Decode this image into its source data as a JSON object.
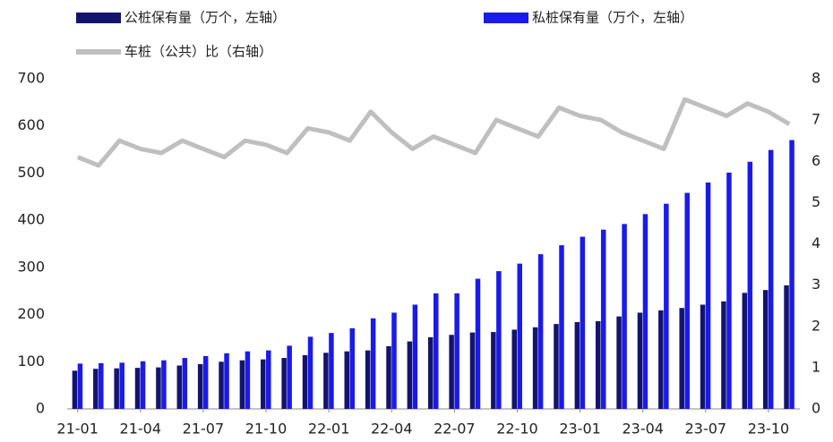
{
  "chart_data": {
    "type": "bar-line",
    "categories": [
      "21-01",
      null,
      null,
      "21-04",
      null,
      null,
      "21-07",
      null,
      null,
      "21-10",
      null,
      null,
      "22-01",
      null,
      null,
      "22-04",
      null,
      null,
      "22-07",
      null,
      null,
      "22-10",
      null,
      null,
      "23-01",
      null,
      null,
      "23-04",
      null,
      null,
      "23-07",
      null,
      null,
      "23-10",
      null
    ],
    "series": [
      {
        "name": "公桩保有量（万个，左轴）",
        "type": "bar",
        "color": "#14146e",
        "values": [
          81,
          85,
          86,
          87,
          88,
          92,
          95,
          100,
          103,
          105,
          108,
          114,
          119,
          122,
          124,
          133,
          143,
          152,
          157,
          162,
          163,
          168,
          173,
          180,
          184,
          186,
          196,
          204,
          209,
          214,
          221,
          228,
          246,
          252,
          262
        ]
      },
      {
        "name": "私桩保有量（万个，左轴）",
        "type": "bar",
        "color": "#1a1aeb",
        "values": [
          96,
          97,
          98,
          101,
          103,
          108,
          112,
          118,
          122,
          124,
          134,
          153,
          161,
          171,
          192,
          204,
          221,
          245,
          245,
          276,
          292,
          308,
          328,
          347,
          365,
          380,
          392,
          413,
          435,
          458,
          480,
          501,
          524,
          549,
          570
        ]
      },
      {
        "name": "车桩（公共）比（右轴）",
        "type": "line",
        "axis": "y2",
        "color": "#bfbfbf",
        "values": [
          6.1,
          5.9,
          6.5,
          6.3,
          6.2,
          6.5,
          6.3,
          6.1,
          6.5,
          6.4,
          6.2,
          6.8,
          6.7,
          6.5,
          7.2,
          6.7,
          6.3,
          6.6,
          6.4,
          6.2,
          7.0,
          6.8,
          6.6,
          7.3,
          7.1,
          7.0,
          6.7,
          6.5,
          6.3,
          7.5,
          7.3,
          7.1,
          7.4,
          7.2,
          6.9
        ]
      }
    ],
    "ylim": [
      0,
      700
    ],
    "yticks": [
      0,
      100,
      200,
      300,
      400,
      500,
      600,
      700
    ],
    "y2lim": [
      0,
      8
    ],
    "y2ticks": [
      0,
      1,
      2,
      3,
      4,
      5,
      6,
      7,
      8
    ],
    "grid": false
  }
}
